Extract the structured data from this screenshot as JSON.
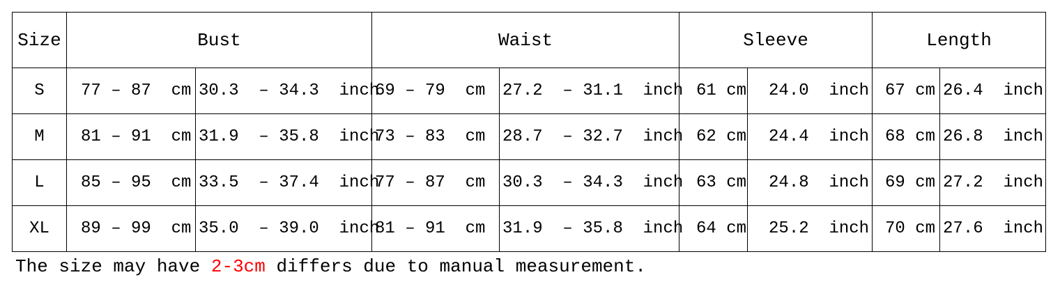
{
  "table": {
    "header": [
      "Size",
      "Bust",
      "Waist",
      "Sleeve",
      "Length"
    ],
    "rows": [
      [
        "S",
        "77 – 87  cm",
        "30.3  – 34.3  inch",
        "69 – 79  cm",
        "27.2  – 31.1  inch",
        "61 cm",
        "24.0  inch",
        "67 cm",
        "26.4  inch"
      ],
      [
        "M",
        "81 – 91  cm",
        "31.9  – 35.8  inch",
        "73 – 83  cm",
        "28.7  – 32.7  inch",
        "62 cm",
        "24.4  inch",
        "68 cm",
        "26.8  inch"
      ],
      [
        "L",
        "85 – 95  cm",
        "33.5  – 37.4  inch",
        "77 – 87  cm",
        "30.3  – 34.3  inch",
        "63 cm",
        "24.8  inch",
        "69 cm",
        "27.2  inch"
      ],
      [
        "XL",
        "89 – 99  cm",
        "35.0  – 39.0  inch",
        "81 – 91  cm",
        "31.9  – 35.8  inch",
        "64 cm",
        "25.2  inch",
        "70 cm",
        "27.6  inch"
      ]
    ]
  },
  "footnote": {
    "before": "The size may have ",
    "highlight": "2-3cm",
    "after": " differs due to manual measurement."
  }
}
